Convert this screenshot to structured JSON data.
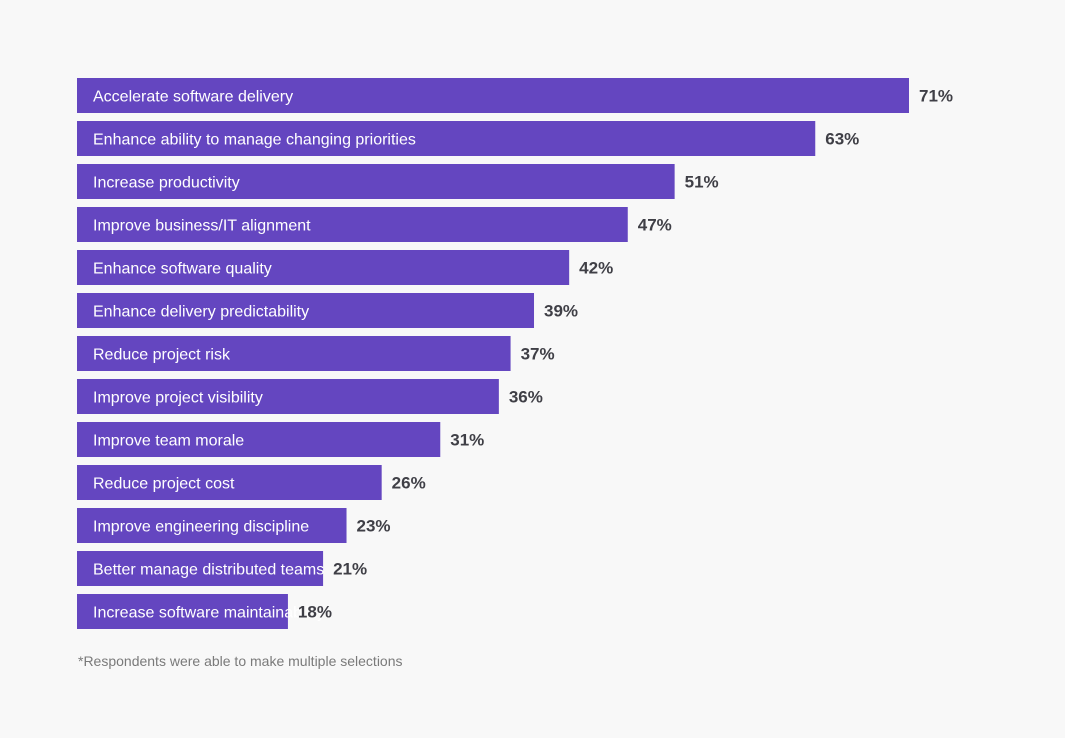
{
  "chart_data": {
    "type": "bar",
    "orientation": "horizontal",
    "categories": [
      "Accelerate software delivery",
      "Enhance ability to manage changing priorities",
      "Increase productivity",
      "Improve business/IT alignment",
      "Enhance software quality",
      "Enhance delivery predictability",
      "Reduce project risk",
      "Improve project visibility",
      "Improve team morale",
      "Reduce project cost",
      "Improve engineering discipline",
      "Better manage distributed teams",
      "Increase software maintainability"
    ],
    "values": [
      71,
      63,
      51,
      47,
      42,
      39,
      37,
      36,
      31,
      26,
      23,
      21,
      18
    ],
    "value_labels": [
      "71%",
      "63%",
      "51%",
      "47%",
      "42%",
      "39%",
      "37%",
      "36%",
      "31%",
      "26%",
      "23%",
      "21%",
      "18%"
    ],
    "unit": "%",
    "bar_color": "#6446c0",
    "grid": false
  },
  "footnote": "*Respondents were able to make multiple selections"
}
